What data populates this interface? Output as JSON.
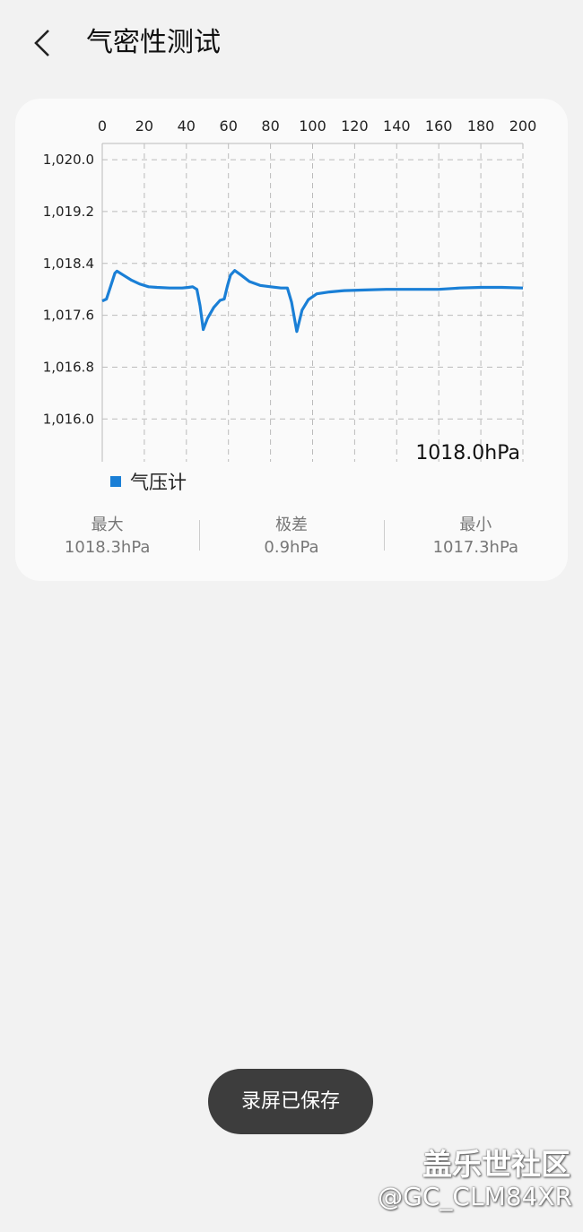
{
  "header": {
    "title": "气密性测试",
    "back_icon": "chevron-left-icon"
  },
  "chart_data": {
    "type": "line",
    "x_ticks": [
      "0",
      "20",
      "40",
      "60",
      "80",
      "100",
      "120",
      "140",
      "160",
      "180",
      "200"
    ],
    "y_ticks": [
      "1,020.0",
      "1,019.2",
      "1,018.4",
      "1,017.6",
      "1,016.8",
      "1,016.0"
    ],
    "xlim": [
      0,
      200
    ],
    "ylim": [
      1015.34,
      1020.25
    ],
    "x_axis_position": "top",
    "grid": true,
    "current_value_label": "1018.0hPa",
    "legend": {
      "position": "bottom-left",
      "entries": [
        {
          "name": "气压计",
          "color": "#1a7fd6"
        }
      ]
    },
    "series": [
      {
        "name": "气压计",
        "color": "#1a7fd6",
        "points": [
          [
            0,
            1017.82
          ],
          [
            2,
            1017.85
          ],
          [
            4,
            1018.05
          ],
          [
            6,
            1018.25
          ],
          [
            7,
            1018.28
          ],
          [
            10,
            1018.22
          ],
          [
            14,
            1018.14
          ],
          [
            18,
            1018.08
          ],
          [
            22,
            1018.04
          ],
          [
            26,
            1018.03
          ],
          [
            32,
            1018.02
          ],
          [
            38,
            1018.02
          ],
          [
            41,
            1018.03
          ],
          [
            43,
            1018.04
          ],
          [
            45,
            1018.0
          ],
          [
            46.5,
            1017.75
          ],
          [
            48,
            1017.38
          ],
          [
            50,
            1017.55
          ],
          [
            53,
            1017.72
          ],
          [
            56,
            1017.83
          ],
          [
            58,
            1017.85
          ],
          [
            59.5,
            1018.05
          ],
          [
            61,
            1018.22
          ],
          [
            63,
            1018.29
          ],
          [
            66,
            1018.22
          ],
          [
            70,
            1018.12
          ],
          [
            75,
            1018.06
          ],
          [
            80,
            1018.04
          ],
          [
            85,
            1018.02
          ],
          [
            88,
            1018.02
          ],
          [
            90,
            1017.8
          ],
          [
            92.5,
            1017.35
          ],
          [
            95,
            1017.68
          ],
          [
            98,
            1017.84
          ],
          [
            102,
            1017.93
          ],
          [
            108,
            1017.96
          ],
          [
            115,
            1017.98
          ],
          [
            125,
            1017.99
          ],
          [
            135,
            1018.0
          ],
          [
            150,
            1018.0
          ],
          [
            160,
            1018.0
          ],
          [
            170,
            1018.02
          ],
          [
            180,
            1018.03
          ],
          [
            190,
            1018.03
          ],
          [
            200,
            1018.02
          ]
        ]
      }
    ]
  },
  "stats": [
    {
      "label": "最大",
      "value": "1018.3hPa"
    },
    {
      "label": "极差",
      "value": "0.9hPa"
    },
    {
      "label": "最小",
      "value": "1017.3hPa"
    }
  ],
  "toast": "录屏已保存",
  "watermark": {
    "line1": "盖乐世社区",
    "line2": "@GC_CLM84XR"
  }
}
